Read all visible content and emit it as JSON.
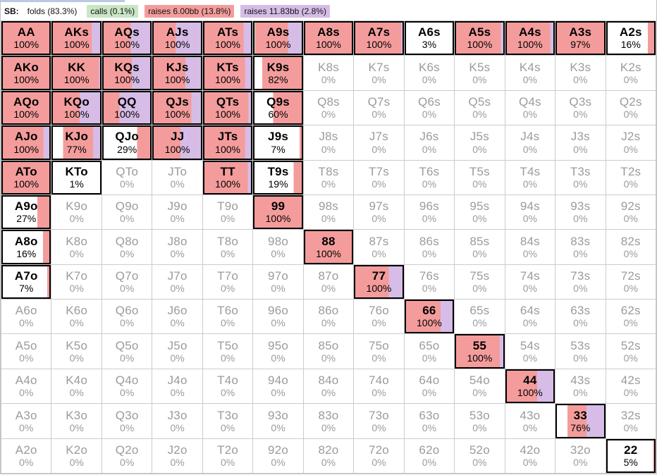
{
  "header": {
    "position_label": "SB:",
    "legend": [
      {
        "label": "folds (83.3%)",
        "color": "#ffffff"
      },
      {
        "label": "calls (0.1%)",
        "color": "#c9e6c5"
      },
      {
        "label": "raises 6.00bb (13.8%)",
        "color": "#f49c9c"
      },
      {
        "label": "raises 11.83bb (2.8%)",
        "color": "#d6bce6"
      }
    ]
  },
  "colors": {
    "fold": "#ffffff",
    "call": "#c9e6c5",
    "raise_small": "#f49c9c",
    "raise_big": "#d6bce6",
    "active_border": "#000000",
    "zero_text": "#9b9b9b",
    "grid_line": "#cccccc"
  },
  "chart_data": {
    "type": "heatmap",
    "title": "SB preflop strategy matrix (13x13 hand grid)",
    "legend_position": "top",
    "actions_order": [
      "fold",
      "call",
      "raise 6.00bb",
      "raise 11.83bb"
    ],
    "rows": [
      [
        {
          "hand": "AA",
          "pct": "100%",
          "seg": [
            0,
            0,
            100,
            0
          ]
        },
        {
          "hand": "AKs",
          "pct": "100%",
          "seg": [
            0,
            0,
            80,
            20
          ]
        },
        {
          "hand": "AQs",
          "pct": "100%",
          "seg": [
            0,
            0,
            58,
            42
          ]
        },
        {
          "hand": "AJs",
          "pct": "100%",
          "seg": [
            0,
            0,
            47,
            53
          ]
        },
        {
          "hand": "ATs",
          "pct": "100%",
          "seg": [
            0,
            0,
            82,
            18
          ]
        },
        {
          "hand": "A9s",
          "pct": "100%",
          "seg": [
            0,
            4,
            66,
            30
          ]
        },
        {
          "hand": "A8s",
          "pct": "100%",
          "seg": [
            0,
            0,
            100,
            0
          ]
        },
        {
          "hand": "A7s",
          "pct": "100%",
          "seg": [
            0,
            0,
            95,
            5
          ]
        },
        {
          "hand": "A6s",
          "pct": "3%",
          "seg": [
            97,
            0,
            3,
            0
          ]
        },
        {
          "hand": "A5s",
          "pct": "100%",
          "seg": [
            0,
            0,
            92,
            8
          ]
        },
        {
          "hand": "A4s",
          "pct": "100%",
          "seg": [
            0,
            0,
            91,
            9
          ]
        },
        {
          "hand": "A3s",
          "pct": "97%",
          "seg": [
            3,
            0,
            97,
            0
          ]
        },
        {
          "hand": "A2s",
          "pct": "16%",
          "seg": [
            84,
            0,
            16,
            0
          ]
        }
      ],
      [
        {
          "hand": "AKo",
          "pct": "100%",
          "seg": [
            0,
            0,
            100,
            0
          ]
        },
        {
          "hand": "KK",
          "pct": "100%",
          "seg": [
            0,
            0,
            95,
            5
          ]
        },
        {
          "hand": "KQs",
          "pct": "100%",
          "seg": [
            0,
            0,
            60,
            40
          ]
        },
        {
          "hand": "KJs",
          "pct": "100%",
          "seg": [
            0,
            0,
            66,
            34
          ]
        },
        {
          "hand": "KTs",
          "pct": "100%",
          "seg": [
            0,
            0,
            85,
            15
          ]
        },
        {
          "hand": "K9s",
          "pct": "82%",
          "seg": [
            18,
            0,
            82,
            0
          ]
        },
        {
          "hand": "K8s",
          "pct": "0%"
        },
        {
          "hand": "K7s",
          "pct": "0%"
        },
        {
          "hand": "K6s",
          "pct": "0%"
        },
        {
          "hand": "K5s",
          "pct": "0%"
        },
        {
          "hand": "K4s",
          "pct": "0%"
        },
        {
          "hand": "K3s",
          "pct": "0%"
        },
        {
          "hand": "K2s",
          "pct": "0%"
        }
      ],
      [
        {
          "hand": "AQo",
          "pct": "100%",
          "seg": [
            0,
            0,
            100,
            0
          ]
        },
        {
          "hand": "KQo",
          "pct": "100%",
          "seg": [
            0,
            0,
            56,
            44
          ]
        },
        {
          "hand": "QQ",
          "pct": "100%",
          "seg": [
            0,
            0,
            35,
            65
          ]
        },
        {
          "hand": "QJs",
          "pct": "100%",
          "seg": [
            0,
            0,
            78,
            22
          ]
        },
        {
          "hand": "QTs",
          "pct": "100%",
          "seg": [
            0,
            0,
            92,
            8
          ]
        },
        {
          "hand": "Q9s",
          "pct": "60%",
          "seg": [
            40,
            0,
            60,
            0
          ]
        },
        {
          "hand": "Q8s",
          "pct": "0%"
        },
        {
          "hand": "Q7s",
          "pct": "0%"
        },
        {
          "hand": "Q6s",
          "pct": "0%"
        },
        {
          "hand": "Q5s",
          "pct": "0%"
        },
        {
          "hand": "Q4s",
          "pct": "0%"
        },
        {
          "hand": "Q3s",
          "pct": "0%"
        },
        {
          "hand": "Q2s",
          "pct": "0%"
        }
      ],
      [
        {
          "hand": "AJo",
          "pct": "100%",
          "seg": [
            0,
            0,
            85,
            15
          ]
        },
        {
          "hand": "KJo",
          "pct": "77%",
          "seg": [
            23,
            0,
            60,
            17
          ]
        },
        {
          "hand": "QJo",
          "pct": "29%",
          "seg": [
            71,
            0,
            29,
            0
          ]
        },
        {
          "hand": "JJ",
          "pct": "100%",
          "seg": [
            0,
            0,
            56,
            44
          ]
        },
        {
          "hand": "JTs",
          "pct": "100%",
          "seg": [
            0,
            0,
            85,
            15
          ]
        },
        {
          "hand": "J9s",
          "pct": "7%",
          "seg": [
            93,
            0,
            7,
            0
          ]
        },
        {
          "hand": "J8s",
          "pct": "0%"
        },
        {
          "hand": "J7s",
          "pct": "0%"
        },
        {
          "hand": "J6s",
          "pct": "0%"
        },
        {
          "hand": "J5s",
          "pct": "0%"
        },
        {
          "hand": "J4s",
          "pct": "0%"
        },
        {
          "hand": "J3s",
          "pct": "0%"
        },
        {
          "hand": "J2s",
          "pct": "0%"
        }
      ],
      [
        {
          "hand": "ATo",
          "pct": "100%",
          "seg": [
            0,
            0,
            100,
            0
          ]
        },
        {
          "hand": "KTo",
          "pct": "1%",
          "seg": [
            99,
            0,
            1,
            0
          ]
        },
        {
          "hand": "QTo",
          "pct": "0%"
        },
        {
          "hand": "JTo",
          "pct": "0%"
        },
        {
          "hand": "TT",
          "pct": "100%",
          "seg": [
            0,
            0,
            91,
            9
          ]
        },
        {
          "hand": "T9s",
          "pct": "19%",
          "seg": [
            81,
            0,
            19,
            0
          ]
        },
        {
          "hand": "T8s",
          "pct": "0%"
        },
        {
          "hand": "T7s",
          "pct": "0%"
        },
        {
          "hand": "T6s",
          "pct": "0%"
        },
        {
          "hand": "T5s",
          "pct": "0%"
        },
        {
          "hand": "T4s",
          "pct": "0%"
        },
        {
          "hand": "T3s",
          "pct": "0%"
        },
        {
          "hand": "T2s",
          "pct": "0%"
        }
      ],
      [
        {
          "hand": "A9o",
          "pct": "27%",
          "seg": [
            73,
            0,
            27,
            0
          ]
        },
        {
          "hand": "K9o",
          "pct": "0%"
        },
        {
          "hand": "Q9o",
          "pct": "0%"
        },
        {
          "hand": "J9o",
          "pct": "0%"
        },
        {
          "hand": "T9o",
          "pct": "0%"
        },
        {
          "hand": "99",
          "pct": "100%",
          "seg": [
            0,
            0,
            100,
            0
          ]
        },
        {
          "hand": "98s",
          "pct": "0%"
        },
        {
          "hand": "97s",
          "pct": "0%"
        },
        {
          "hand": "96s",
          "pct": "0%"
        },
        {
          "hand": "95s",
          "pct": "0%"
        },
        {
          "hand": "94s",
          "pct": "0%"
        },
        {
          "hand": "93s",
          "pct": "0%"
        },
        {
          "hand": "92s",
          "pct": "0%"
        }
      ],
      [
        {
          "hand": "A8o",
          "pct": "16%",
          "seg": [
            84,
            0,
            16,
            0
          ]
        },
        {
          "hand": "K8o",
          "pct": "0%"
        },
        {
          "hand": "Q8o",
          "pct": "0%"
        },
        {
          "hand": "J8o",
          "pct": "0%"
        },
        {
          "hand": "T8o",
          "pct": "0%"
        },
        {
          "hand": "98o",
          "pct": "0%"
        },
        {
          "hand": "88",
          "pct": "100%",
          "seg": [
            0,
            0,
            100,
            0
          ]
        },
        {
          "hand": "87s",
          "pct": "0%"
        },
        {
          "hand": "86s",
          "pct": "0%"
        },
        {
          "hand": "85s",
          "pct": "0%"
        },
        {
          "hand": "84s",
          "pct": "0%"
        },
        {
          "hand": "83s",
          "pct": "0%"
        },
        {
          "hand": "82s",
          "pct": "0%"
        }
      ],
      [
        {
          "hand": "A7o",
          "pct": "7%",
          "seg": [
            93,
            0,
            7,
            0
          ]
        },
        {
          "hand": "K7o",
          "pct": "0%"
        },
        {
          "hand": "Q7o",
          "pct": "0%"
        },
        {
          "hand": "J7o",
          "pct": "0%"
        },
        {
          "hand": "T7o",
          "pct": "0%"
        },
        {
          "hand": "97o",
          "pct": "0%"
        },
        {
          "hand": "87o",
          "pct": "0%"
        },
        {
          "hand": "77",
          "pct": "100%",
          "seg": [
            0,
            0,
            70,
            30
          ]
        },
        {
          "hand": "76s",
          "pct": "0%"
        },
        {
          "hand": "75s",
          "pct": "0%"
        },
        {
          "hand": "74s",
          "pct": "0%"
        },
        {
          "hand": "73s",
          "pct": "0%"
        },
        {
          "hand": "72s",
          "pct": "0%"
        }
      ],
      [
        {
          "hand": "A6o",
          "pct": "0%"
        },
        {
          "hand": "K6o",
          "pct": "0%"
        },
        {
          "hand": "Q6o",
          "pct": "0%"
        },
        {
          "hand": "J6o",
          "pct": "0%"
        },
        {
          "hand": "T6o",
          "pct": "0%"
        },
        {
          "hand": "96o",
          "pct": "0%"
        },
        {
          "hand": "86o",
          "pct": "0%"
        },
        {
          "hand": "76o",
          "pct": "0%"
        },
        {
          "hand": "66",
          "pct": "100%",
          "seg": [
            0,
            0,
            73,
            27
          ]
        },
        {
          "hand": "65s",
          "pct": "0%"
        },
        {
          "hand": "64s",
          "pct": "0%"
        },
        {
          "hand": "63s",
          "pct": "0%"
        },
        {
          "hand": "62s",
          "pct": "0%"
        }
      ],
      [
        {
          "hand": "A5o",
          "pct": "0%"
        },
        {
          "hand": "K5o",
          "pct": "0%"
        },
        {
          "hand": "Q5o",
          "pct": "0%"
        },
        {
          "hand": "J5o",
          "pct": "0%"
        },
        {
          "hand": "T5o",
          "pct": "0%"
        },
        {
          "hand": "95o",
          "pct": "0%"
        },
        {
          "hand": "85o",
          "pct": "0%"
        },
        {
          "hand": "75o",
          "pct": "0%"
        },
        {
          "hand": "65o",
          "pct": "0%"
        },
        {
          "hand": "55",
          "pct": "100%",
          "seg": [
            0,
            0,
            90,
            10
          ]
        },
        {
          "hand": "54s",
          "pct": "0%"
        },
        {
          "hand": "53s",
          "pct": "0%"
        },
        {
          "hand": "52s",
          "pct": "0%"
        }
      ],
      [
        {
          "hand": "A4o",
          "pct": "0%"
        },
        {
          "hand": "K4o",
          "pct": "0%"
        },
        {
          "hand": "Q4o",
          "pct": "0%"
        },
        {
          "hand": "J4o",
          "pct": "0%"
        },
        {
          "hand": "T4o",
          "pct": "0%"
        },
        {
          "hand": "94o",
          "pct": "0%"
        },
        {
          "hand": "84o",
          "pct": "0%"
        },
        {
          "hand": "74o",
          "pct": "0%"
        },
        {
          "hand": "64o",
          "pct": "0%"
        },
        {
          "hand": "54o",
          "pct": "0%"
        },
        {
          "hand": "44",
          "pct": "100%",
          "seg": [
            0,
            0,
            64,
            36
          ]
        },
        {
          "hand": "43s",
          "pct": "0%"
        },
        {
          "hand": "42s",
          "pct": "0%"
        }
      ],
      [
        {
          "hand": "A3o",
          "pct": "0%"
        },
        {
          "hand": "K3o",
          "pct": "0%"
        },
        {
          "hand": "Q3o",
          "pct": "0%"
        },
        {
          "hand": "J3o",
          "pct": "0%"
        },
        {
          "hand": "T3o",
          "pct": "0%"
        },
        {
          "hand": "93o",
          "pct": "0%"
        },
        {
          "hand": "83o",
          "pct": "0%"
        },
        {
          "hand": "73o",
          "pct": "0%"
        },
        {
          "hand": "63o",
          "pct": "0%"
        },
        {
          "hand": "53o",
          "pct": "0%"
        },
        {
          "hand": "43o",
          "pct": "0%"
        },
        {
          "hand": "33",
          "pct": "76%",
          "seg": [
            24,
            0,
            38,
            38
          ]
        },
        {
          "hand": "32s",
          "pct": "0%"
        }
      ],
      [
        {
          "hand": "A2o",
          "pct": "0%"
        },
        {
          "hand": "K2o",
          "pct": "0%"
        },
        {
          "hand": "Q2o",
          "pct": "0%"
        },
        {
          "hand": "J2o",
          "pct": "0%"
        },
        {
          "hand": "T2o",
          "pct": "0%"
        },
        {
          "hand": "92o",
          "pct": "0%"
        },
        {
          "hand": "82o",
          "pct": "0%"
        },
        {
          "hand": "72o",
          "pct": "0%"
        },
        {
          "hand": "62o",
          "pct": "0%"
        },
        {
          "hand": "52o",
          "pct": "0%"
        },
        {
          "hand": "42o",
          "pct": "0%"
        },
        {
          "hand": "32o",
          "pct": "0%"
        },
        {
          "hand": "22",
          "pct": "5%",
          "seg": [
            95,
            0,
            5,
            0
          ]
        }
      ]
    ]
  }
}
